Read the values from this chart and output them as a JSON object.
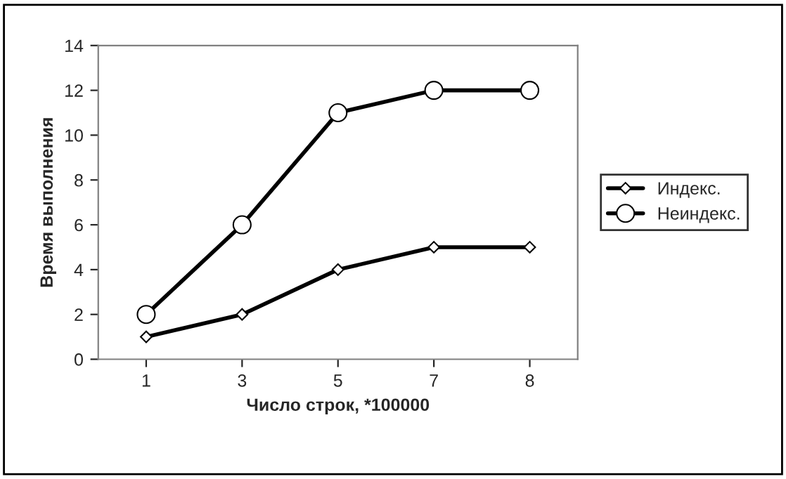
{
  "chart_data": {
    "type": "line",
    "xlabel": "Число строк, *100000",
    "ylabel": "Время выполнения",
    "categories": [
      "1",
      "3",
      "5",
      "7",
      "8"
    ],
    "series": [
      {
        "name": "Индекс.",
        "color": "#000000",
        "marker": "diamond",
        "values": [
          1,
          2,
          4,
          5,
          5
        ]
      },
      {
        "name": "Неиндекс.",
        "color": "#000000",
        "marker": "circle",
        "values": [
          2,
          6,
          11,
          12,
          12
        ]
      }
    ],
    "ylim": [
      0,
      14
    ],
    "yticks": [
      0,
      2,
      4,
      6,
      8,
      10,
      12,
      14
    ],
    "grid": false,
    "legend": "right",
    "line_style": "solid"
  }
}
